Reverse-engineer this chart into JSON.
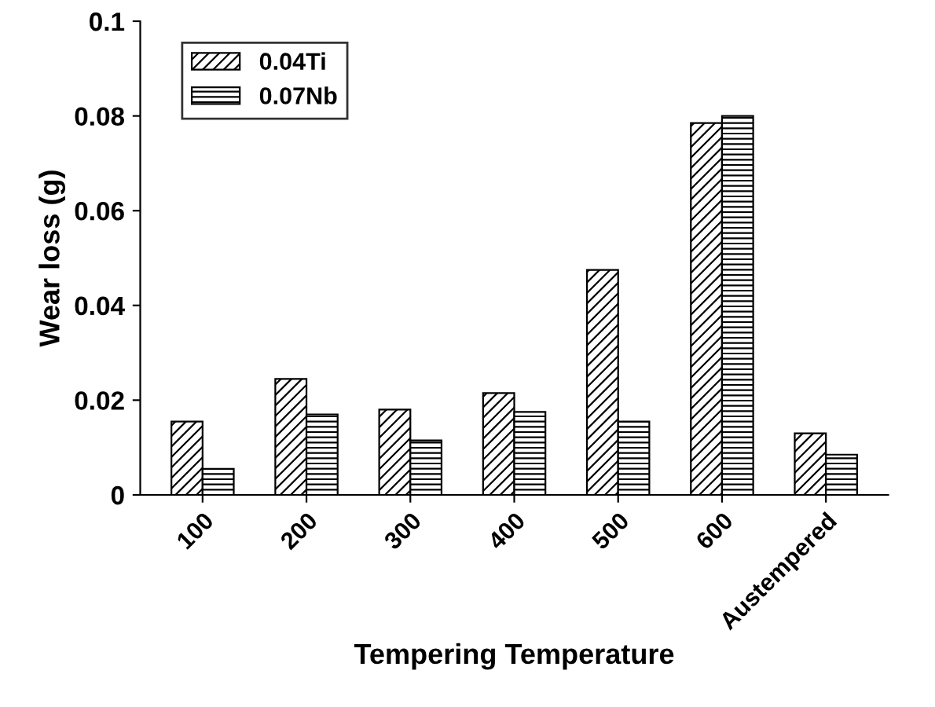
{
  "chart_data": {
    "type": "bar",
    "xlabel": "Tempering Temperature",
    "ylabel": "Wear loss (g)",
    "categories": [
      "100",
      "200",
      "300",
      "400",
      "500",
      "600",
      "Austempered"
    ],
    "series": [
      {
        "name": "0.04Ti",
        "color": "#000000",
        "values": [
          0.0155,
          0.0245,
          0.018,
          0.0215,
          0.0475,
          0.0785,
          0.013
        ]
      },
      {
        "name": "0.07Nb",
        "color": "#000000",
        "values": [
          0.0055,
          0.017,
          0.0115,
          0.0175,
          0.0155,
          0.08,
          0.0085
        ]
      }
    ],
    "ylim": [
      0,
      0.1
    ],
    "yticks": [
      0,
      0.02,
      0.04,
      0.06,
      0.08,
      0.1
    ],
    "grid": false,
    "legend": "top left"
  }
}
